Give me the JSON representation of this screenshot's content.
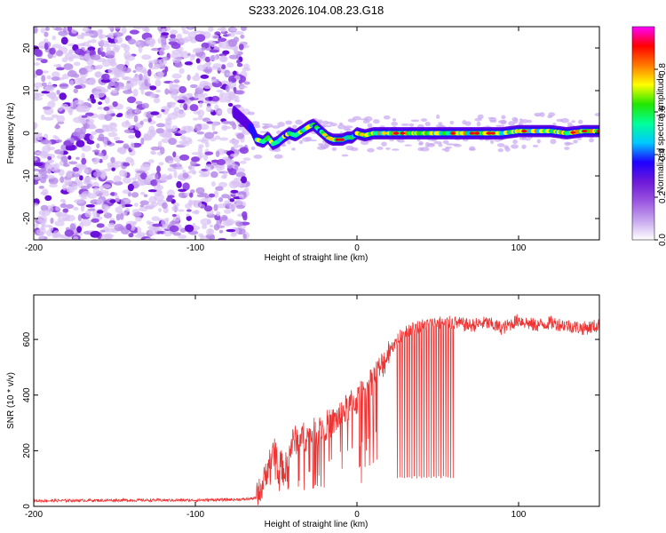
{
  "title": "S233.2026.104.08.23.G18",
  "chart_data": [
    {
      "type": "heatmap",
      "name": "spectrogram",
      "xlabel": "Height of straight line (km)",
      "ylabel": "Frequency (Hz)",
      "xlim": [
        -200,
        150
      ],
      "ylim": [
        -25,
        25
      ],
      "xticks": [
        -200,
        -100,
        0,
        100
      ],
      "xtick_labels": [
        "-200",
        "-100",
        "0",
        "100"
      ],
      "yticks": [
        -20,
        -10,
        0,
        10,
        20
      ],
      "ytick_labels": [
        "-20",
        "-10",
        "0",
        "10",
        "20"
      ],
      "noise_region": [
        -200,
        -68
      ],
      "ridge": {
        "x": [
          -76,
          -70,
          -65,
          -62,
          -58,
          -55,
          -52,
          -49,
          -46,
          -42,
          -38,
          -34,
          -30,
          -27,
          -24,
          -21,
          -18,
          -15,
          -12,
          -9,
          -6,
          -3,
          0,
          5,
          10,
          20,
          30,
          40,
          50,
          60,
          70,
          80,
          90,
          100,
          110,
          120,
          130,
          140,
          150
        ],
        "y": [
          5,
          3,
          1,
          -1.5,
          -2,
          -1,
          -2.5,
          -2,
          -1,
          0,
          -0.5,
          0.5,
          1.5,
          2,
          1,
          0,
          -1,
          -1.5,
          -1.5,
          -1.5,
          -1,
          -1,
          0,
          -0.5,
          0,
          0,
          0,
          0,
          0,
          0,
          0,
          0,
          0,
          0.5,
          0.5,
          0.5,
          0,
          0.5,
          0.5
        ]
      },
      "colorbar": {
        "label": "Normalized spectral amplitude",
        "range": [
          0,
          1
        ],
        "ticks": [
          0.0,
          0.2,
          0.4,
          0.6,
          0.8
        ],
        "tick_labels": [
          "0.0",
          "0.2",
          "0.4",
          "0.6",
          "0.8"
        ],
        "colors": [
          "#ffffff",
          "#c7a6ef",
          "#9a55e0",
          "#6d19d8",
          "#1f00ff",
          "#00c8ff",
          "#00ff99",
          "#22e600",
          "#ffff00",
          "#ff7a00",
          "#ff0000",
          "#ff00ff"
        ]
      }
    },
    {
      "type": "line",
      "name": "snr",
      "xlabel": "Height of straight line (km)",
      "ylabel": "SNR (10 * v/v)",
      "xlim": [
        -200,
        150
      ],
      "ylim": [
        0,
        760
      ],
      "xticks": [
        -200,
        -100,
        0,
        100
      ],
      "xtick_labels": [
        "-200",
        "-100",
        "0",
        "100"
      ],
      "yticks": [
        0,
        200,
        400,
        600
      ],
      "ytick_labels": [
        "0",
        "200",
        "400",
        "600"
      ],
      "color": "#ee3333",
      "envelope": {
        "x": [
          -200,
          -150,
          -100,
          -70,
          -62,
          -58,
          -55,
          -50,
          -45,
          -40,
          -35,
          -30,
          -25,
          -20,
          -15,
          -10,
          -5,
          0,
          5,
          10,
          15,
          20,
          25,
          30,
          40,
          50,
          60,
          70,
          80,
          90,
          100,
          110,
          120,
          130,
          140,
          150
        ],
        "y": [
          20,
          22,
          22,
          25,
          30,
          80,
          150,
          200,
          120,
          230,
          250,
          250,
          270,
          290,
          300,
          330,
          360,
          380,
          420,
          460,
          500,
          560,
          600,
          630,
          650,
          660,
          660,
          650,
          660,
          640,
          670,
          650,
          660,
          650,
          640,
          650
        ]
      },
      "dropouts": {
        "x_range": [
          25,
          60
        ],
        "low": 100
      }
    }
  ]
}
